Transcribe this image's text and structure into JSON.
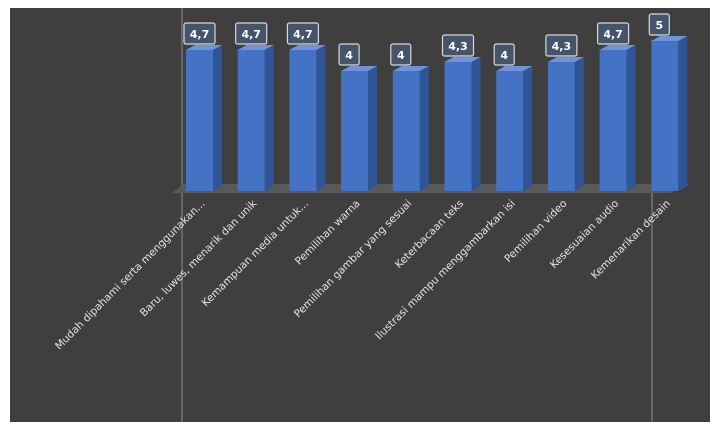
{
  "chart_data": {
    "type": "bar",
    "title": "",
    "xlabel": "",
    "ylabel": "",
    "ylim": [
      0,
      5
    ],
    "grid": false,
    "legend": "none",
    "categories": [
      "Mudah dipahami serta menggunakan...",
      "Baru, luwes, menarik dan unik",
      "Kemampuan media untuk...",
      "Pemilihan warna",
      "Pemilihan gambar yang sesuai",
      "Keterbacaan teks",
      "Ilustrasi mampu menggambarkan isi",
      "Pemilihan video",
      "Kesesuaian audio",
      "Kemenarikan desain"
    ],
    "values": [
      4.7,
      4.7,
      4.7,
      4,
      4,
      4.3,
      4,
      4.3,
      4.7,
      5
    ],
    "data_labels": [
      "4,7",
      "4,7",
      "4,7",
      "4",
      "4",
      "4,3",
      "4",
      "4,3",
      "4,7",
      "5"
    ],
    "colors": {
      "background": "#3f3f3f",
      "bar_front": "#4472c4",
      "bar_side": "#2f5597",
      "bar_top": "#6f93d6",
      "floor": "#595959",
      "label_box": "#44546a"
    }
  }
}
